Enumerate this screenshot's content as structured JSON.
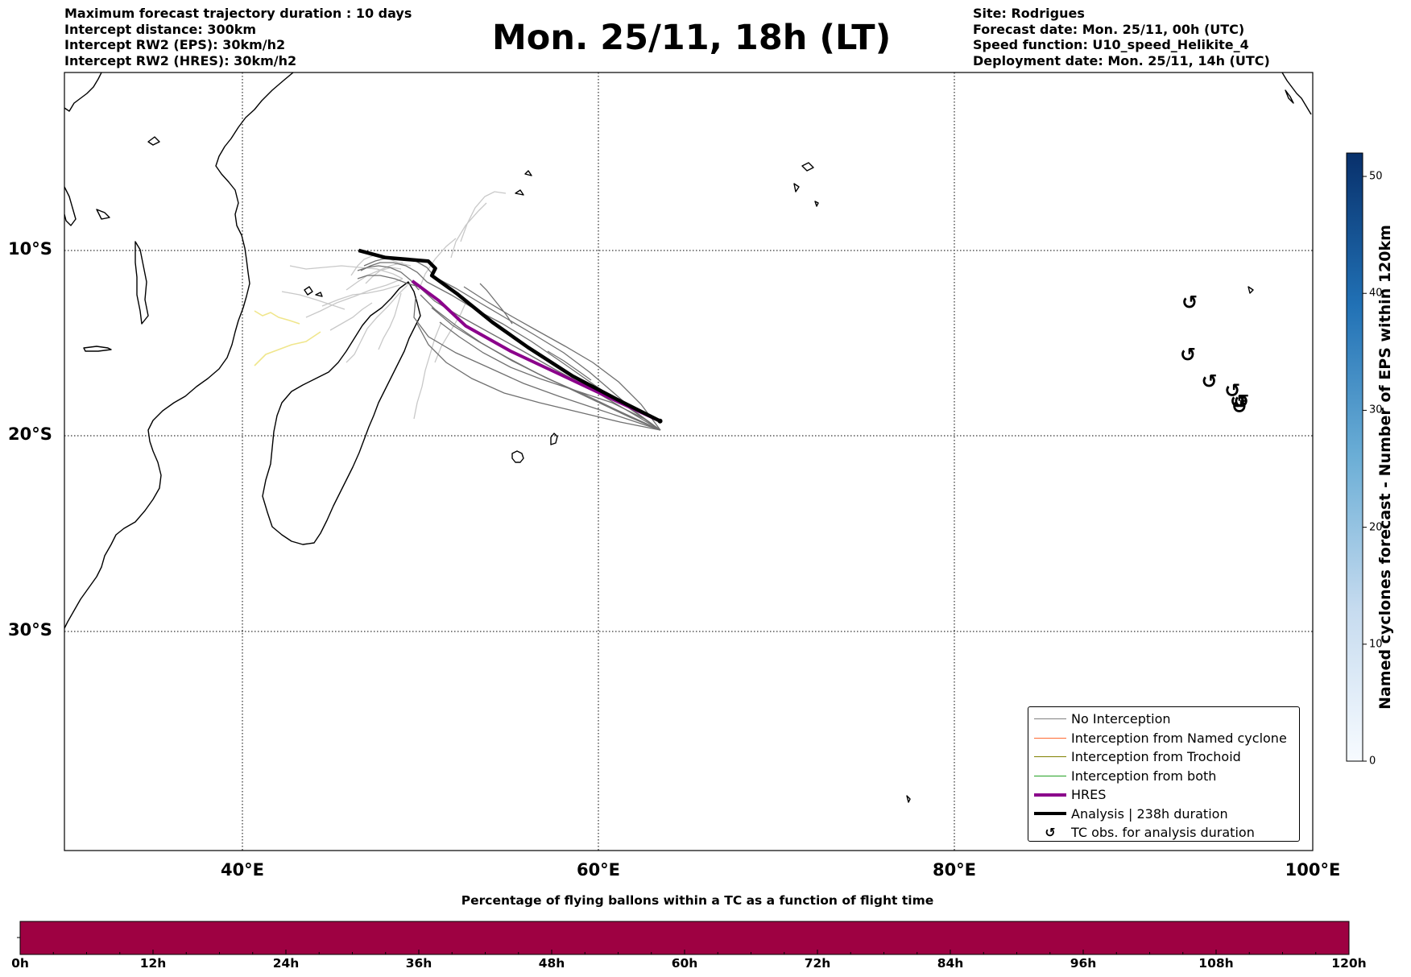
{
  "header_left": [
    "Maximum forecast trajectory duration : 10 days",
    "Intercept distance: 300km",
    "Intercept RW2 (EPS):  30km/h2",
    "Intercept RW2 (HRES): 30km/h2"
  ],
  "header_right": [
    "Site: Rodrigues",
    "Forecast date: Mon. 25/11, 00h (UTC)",
    "Speed function: U10_speed_Helikite_4",
    "Deployment date: Mon. 25/11, 14h (UTC)"
  ],
  "main_title": "Mon. 25/11, 18h (LT)",
  "map": {
    "lon_range": [
      30,
      100
    ],
    "lat_range": [
      -43.6,
      -0.3
    ],
    "lat_labels": [
      "10°S",
      "20°S",
      "30°S"
    ],
    "lat_values": [
      -10,
      -20,
      -30
    ],
    "lon_labels": [
      "40°E",
      "60°E",
      "80°E",
      "100°E"
    ],
    "lon_values": [
      40,
      60,
      80,
      100
    ],
    "gridlines": true,
    "deployment_site": {
      "lon": 63.4,
      "lat": -19.7
    },
    "hres_track": [
      [
        63.4,
        -19.7
      ],
      [
        61,
        -18.6
      ],
      [
        58,
        -17.2
      ],
      [
        55,
        -15.8
      ],
      [
        52.5,
        -14.4
      ],
      [
        51,
        -13
      ],
      [
        49.5,
        -11.9
      ]
    ],
    "analysis_track": [
      [
        63.4,
        -19.7
      ],
      [
        61,
        -18.5
      ],
      [
        58.5,
        -17.2
      ],
      [
        56,
        -15.6
      ],
      [
        54,
        -14.2
      ],
      [
        52,
        -12.6
      ],
      [
        50.6,
        -11.6
      ],
      [
        50.8,
        -11.2
      ],
      [
        50.4,
        -10.8
      ],
      [
        48,
        -10.6
      ],
      [
        46.5,
        -10.2
      ]
    ],
    "tc_observations": [
      [
        93.1,
        -13.1
      ],
      [
        93.0,
        -16.0
      ],
      [
        94.2,
        -17.5
      ],
      [
        95.5,
        -18.0
      ],
      [
        95.8,
        -18.6
      ],
      [
        95.9,
        -18.9
      ],
      [
        96.0,
        -18.6
      ]
    ]
  },
  "legend": {
    "items": [
      {
        "label": "No Interception",
        "color": "#808080",
        "width": 1.5,
        "type": "line"
      },
      {
        "label": "Interception from Named cyclone",
        "color": "#ff6a33",
        "width": 1.5,
        "type": "line"
      },
      {
        "label": "Interception from Trochoid",
        "color": "#808000",
        "width": 1.5,
        "type": "line"
      },
      {
        "label": "Interception from both",
        "color": "#22a022",
        "width": 1.5,
        "type": "line"
      },
      {
        "label": "HRES",
        "color": "#8b008b",
        "width": 4,
        "type": "line"
      },
      {
        "label": "Analysis | 238h duration",
        "color": "#000000",
        "width": 4,
        "type": "line"
      },
      {
        "label": "TC obs. for analysis duration",
        "color": "#000000",
        "type": "marker",
        "glyph": "↺"
      }
    ]
  },
  "colorbar": {
    "label": "Named cyclones forecast - Number of EPS within 120km",
    "min": 0,
    "max": 52,
    "ticks": [
      "0",
      "10",
      "20",
      "30",
      "40",
      "50"
    ],
    "tick_values": [
      0,
      10,
      20,
      30,
      40,
      50
    ],
    "color_low": "#f7fbff",
    "color_high": "#08306b"
  },
  "time_bar": {
    "title": "Percentage of flying ballons within a TC as a function of flight time",
    "labels": [
      "0h",
      "12h",
      "24h",
      "36h",
      "48h",
      "60h",
      "72h",
      "84h",
      "96h",
      "108h",
      "120h"
    ],
    "fill_color": "#9e0142",
    "percentage_values": [
      0,
      0,
      0,
      0,
      0,
      0,
      0,
      0,
      0,
      0,
      0
    ]
  }
}
